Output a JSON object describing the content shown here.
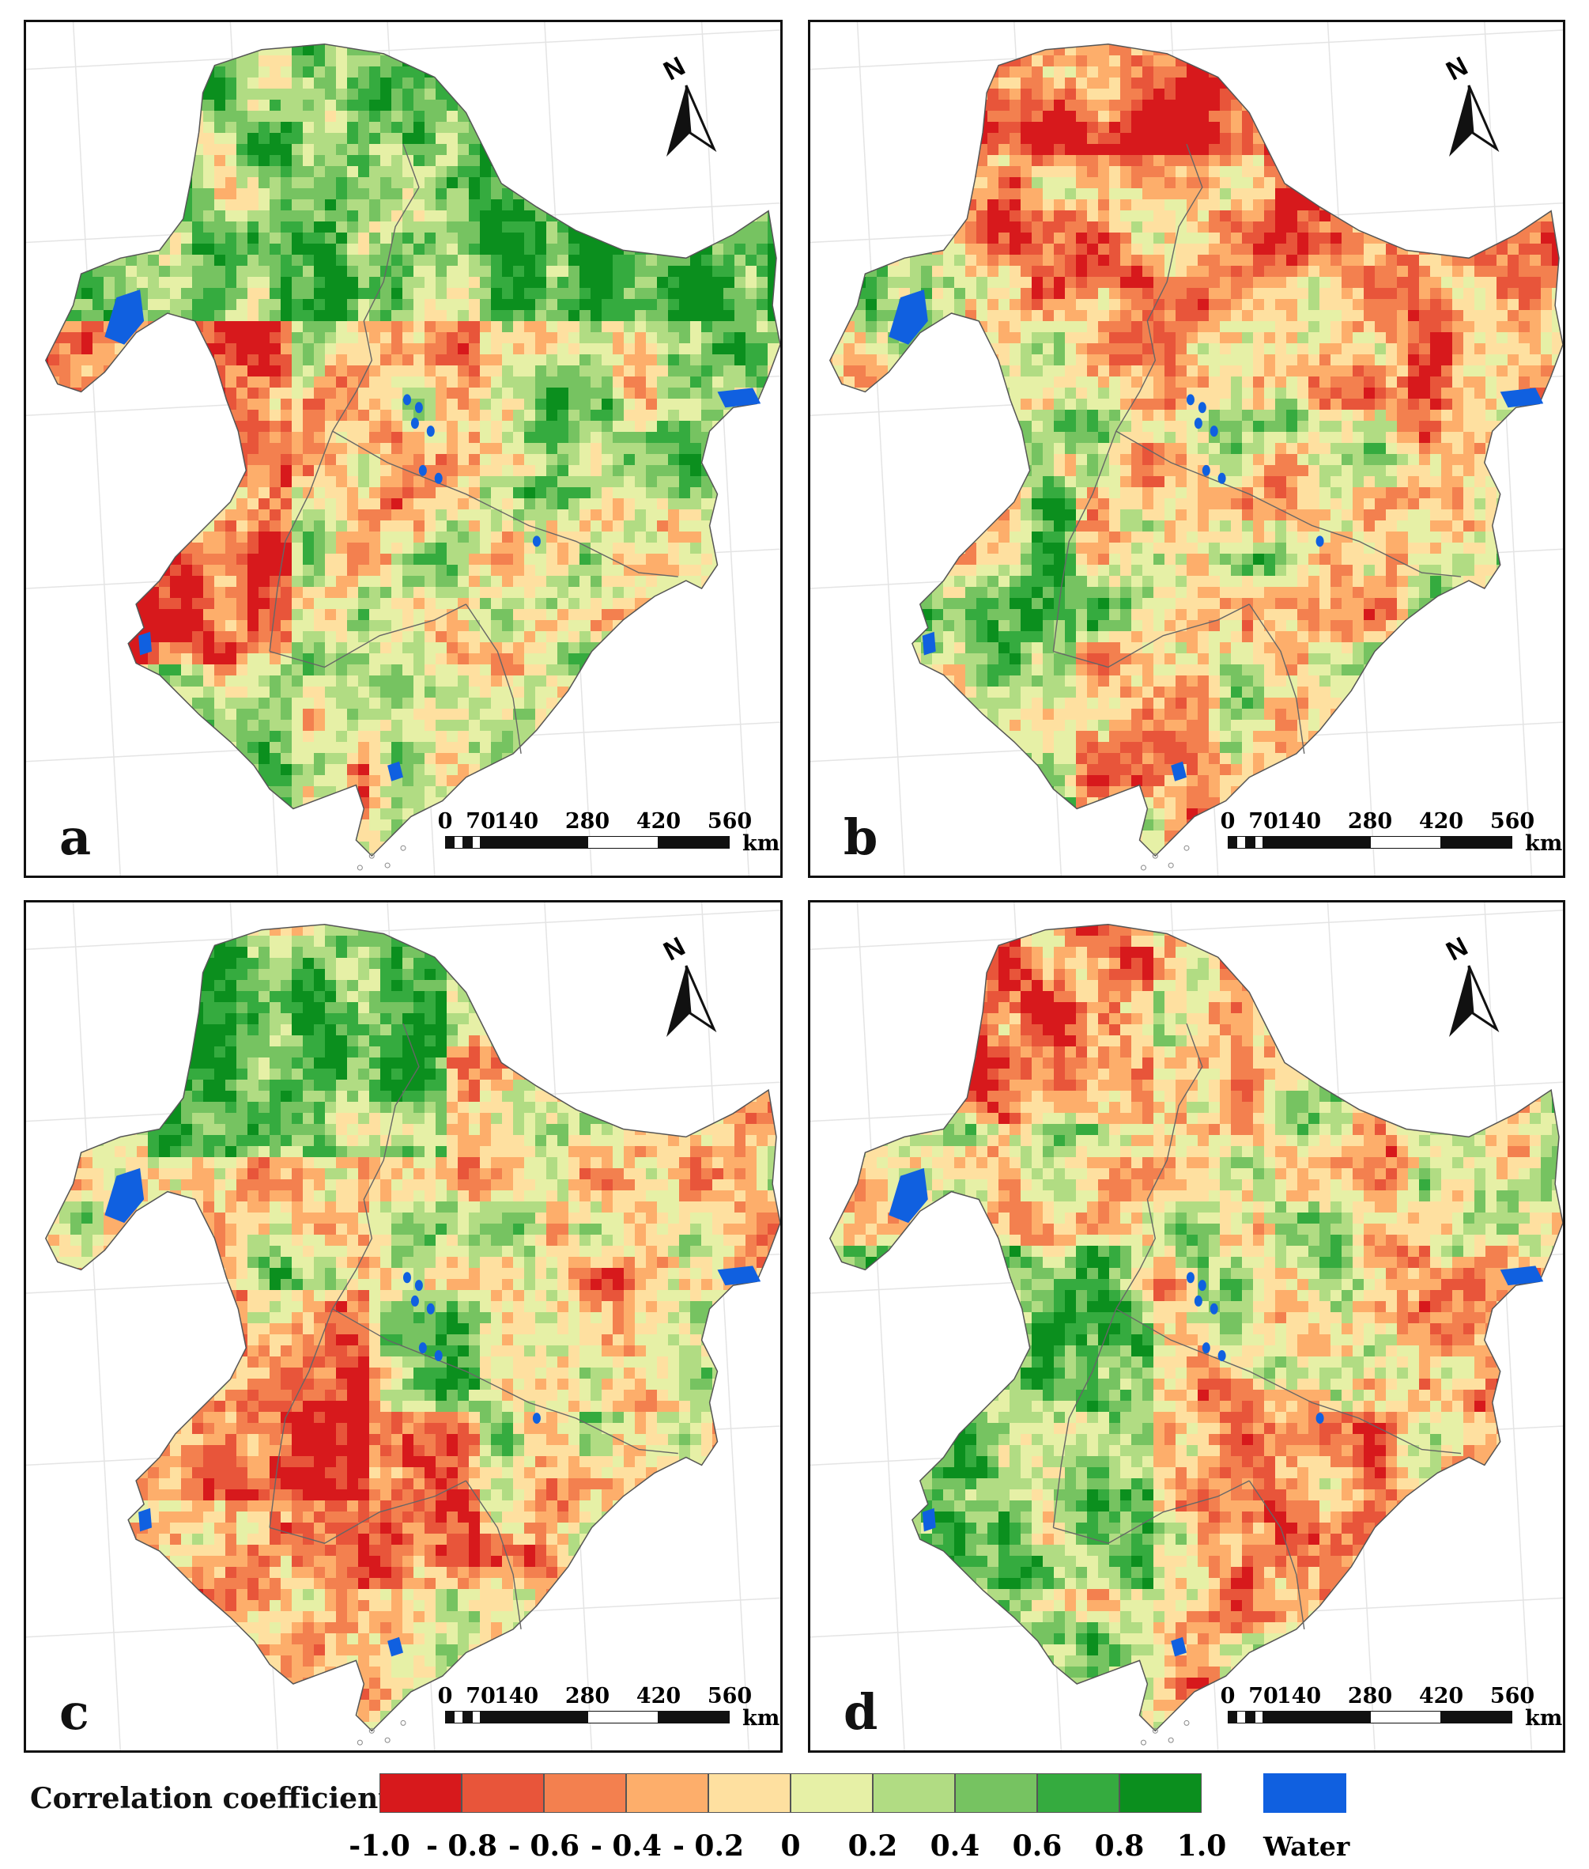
{
  "panels": [
    {
      "id": "a",
      "label": "a",
      "tone": "a"
    },
    {
      "id": "b",
      "label": "b",
      "tone": "b"
    },
    {
      "id": "c",
      "label": "c",
      "tone": "c"
    },
    {
      "id": "d",
      "label": "d",
      "tone": "d"
    }
  ],
  "north_arrow": {
    "label": "N"
  },
  "scale_bar": {
    "ticks": [
      "0",
      "70",
      "140",
      "280",
      "420",
      "560"
    ],
    "unit": "km"
  },
  "legend": {
    "title": "Correlation coefficient",
    "classes": [
      {
        "color": "#d7191c"
      },
      {
        "color": "#e8553a"
      },
      {
        "color": "#f3804f"
      },
      {
        "color": "#fdae6b"
      },
      {
        "color": "#fee0a0"
      },
      {
        "color": "#e6f0a6"
      },
      {
        "color": "#b1dc83"
      },
      {
        "color": "#76c361"
      },
      {
        "color": "#35ab3f"
      },
      {
        "color": "#0b8f1e"
      }
    ],
    "ticks": [
      "-1.0",
      "- 0.8",
      "- 0.6",
      "- 0.4",
      "- 0.2",
      "0",
      "0.2",
      "0.4",
      "0.6",
      "0.8",
      "1.0"
    ],
    "water_label": "Water",
    "water_color": "#1060e0"
  }
}
